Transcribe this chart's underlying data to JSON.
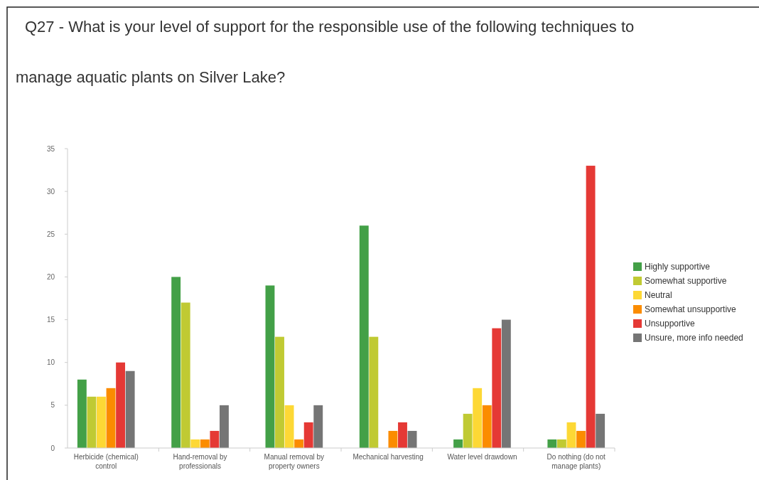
{
  "chart_data": {
    "type": "bar",
    "title": "Q27 - What is your level of support for the responsible use of the following techniques to manage aquatic plants on Silver Lake?",
    "categories": [
      "Herbicide (chemical) control",
      "Hand-removal by professionals",
      "Manual removal by property owners",
      "Mechanical harvesting",
      "Water level drawdown",
      "Do nothing (do not manage plants)"
    ],
    "series": [
      {
        "name": "Highly supportive",
        "color": "#43a047",
        "values": [
          8,
          20,
          19,
          26,
          1,
          1
        ]
      },
      {
        "name": "Somewhat supportive",
        "color": "#c0ca33",
        "values": [
          6,
          17,
          13,
          13,
          4,
          1
        ]
      },
      {
        "name": "Neutral",
        "color": "#fdd835",
        "values": [
          6,
          1,
          5,
          0,
          7,
          3
        ]
      },
      {
        "name": "Somewhat unsupportive",
        "color": "#fb8c00",
        "values": [
          7,
          1,
          1,
          2,
          5,
          2
        ]
      },
      {
        "name": "Unsupportive",
        "color": "#e53935",
        "values": [
          10,
          2,
          3,
          3,
          14,
          33
        ]
      },
      {
        "name": "Unsure, more info needed",
        "color": "#757575",
        "values": [
          9,
          5,
          5,
          2,
          15,
          4
        ]
      }
    ],
    "ylim": [
      0,
      35
    ],
    "yticks": [
      0,
      5,
      10,
      15,
      20,
      25,
      30,
      35
    ],
    "grid": false,
    "legend": "right"
  }
}
